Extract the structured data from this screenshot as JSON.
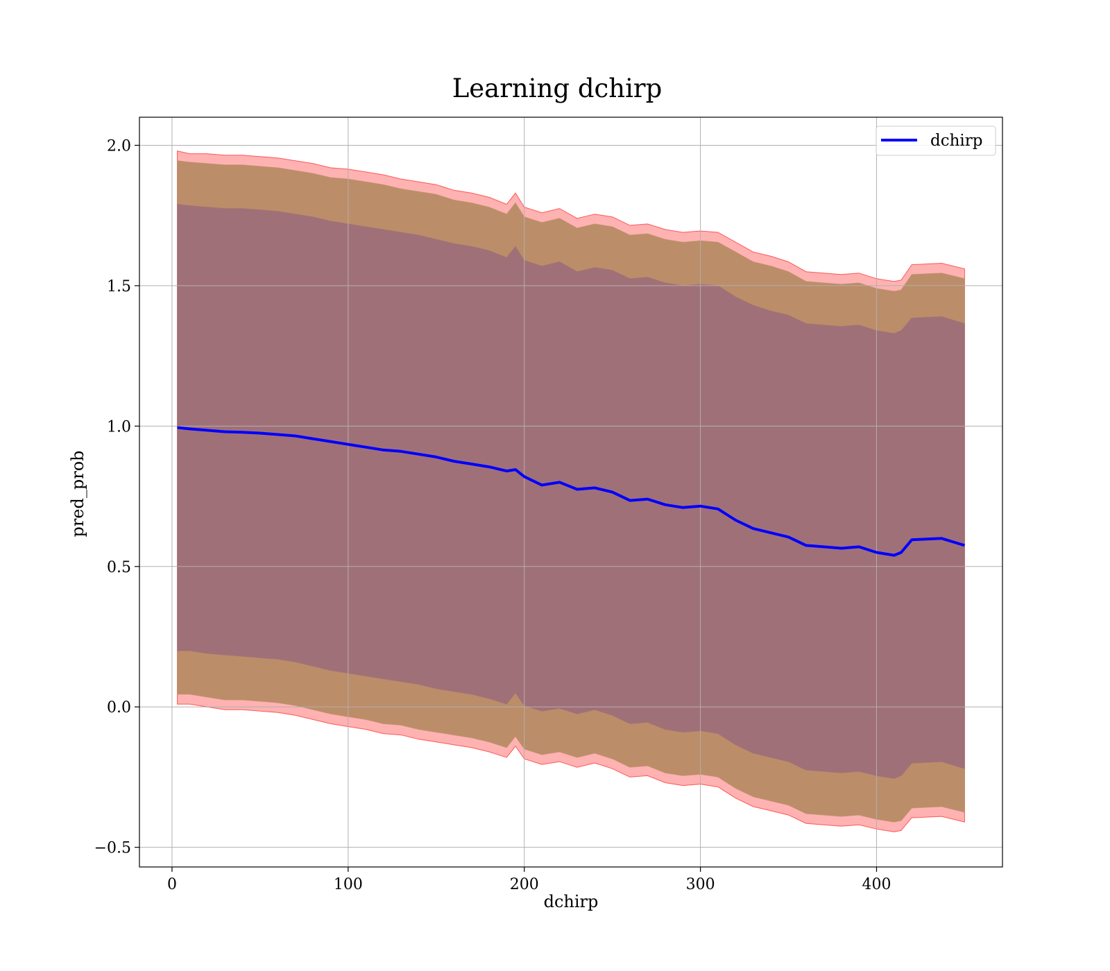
{
  "chart_data": {
    "type": "line",
    "title": "Learning dchirp",
    "xlabel": "dchirp",
    "ylabel": "pred_prob",
    "xlim": [
      -18.5,
      471.5
    ],
    "ylim": [
      -0.57,
      2.1
    ],
    "xticks": [
      0,
      100,
      200,
      300,
      400
    ],
    "xtick_labels": [
      "0",
      "100",
      "200",
      "300",
      "400"
    ],
    "yticks": [
      -0.5,
      0.0,
      0.5,
      1.0,
      1.5,
      2.0
    ],
    "ytick_labels": [
      "−0.5",
      "0.0",
      "0.5",
      "1.0",
      "1.5",
      "2.0"
    ],
    "grid": true,
    "legend": {
      "position": "top-right",
      "entries": [
        "dchirp"
      ]
    },
    "series": [
      {
        "name": "dchirp",
        "color": "#0000ff",
        "x": [
          3,
          10,
          20,
          30,
          40,
          50,
          60,
          70,
          80,
          90,
          100,
          110,
          120,
          130,
          140,
          150,
          160,
          170,
          180,
          190,
          195,
          200,
          210,
          220,
          230,
          240,
          250,
          260,
          270,
          280,
          290,
          300,
          310,
          320,
          330,
          340,
          350,
          360,
          370,
          380,
          390,
          400,
          410,
          414,
          420,
          437,
          450
        ],
        "values": [
          0.995,
          0.99,
          0.985,
          0.98,
          0.978,
          0.975,
          0.97,
          0.965,
          0.955,
          0.945,
          0.935,
          0.925,
          0.915,
          0.91,
          0.9,
          0.89,
          0.875,
          0.865,
          0.855,
          0.84,
          0.845,
          0.82,
          0.79,
          0.8,
          0.775,
          0.78,
          0.765,
          0.735,
          0.74,
          0.72,
          0.71,
          0.715,
          0.705,
          0.665,
          0.635,
          0.62,
          0.605,
          0.575,
          0.57,
          0.565,
          0.57,
          0.55,
          0.54,
          0.55,
          0.595,
          0.6,
          0.575
        ]
      }
    ],
    "bands": [
      {
        "label": "outer",
        "color": "#ff0000",
        "opacity": 0.3,
        "x": [
          3,
          10,
          20,
          30,
          40,
          50,
          60,
          70,
          80,
          90,
          100,
          110,
          120,
          130,
          140,
          150,
          160,
          170,
          180,
          190,
          195,
          200,
          210,
          220,
          230,
          240,
          250,
          260,
          270,
          280,
          290,
          300,
          310,
          320,
          330,
          340,
          350,
          360,
          370,
          380,
          390,
          400,
          410,
          414,
          420,
          437,
          450
        ],
        "upper": [
          1.98,
          1.97,
          1.97,
          1.965,
          1.965,
          1.96,
          1.955,
          1.945,
          1.935,
          1.92,
          1.915,
          1.905,
          1.895,
          1.88,
          1.87,
          1.86,
          1.84,
          1.83,
          1.815,
          1.79,
          1.83,
          1.78,
          1.76,
          1.775,
          1.74,
          1.755,
          1.745,
          1.715,
          1.72,
          1.7,
          1.69,
          1.695,
          1.69,
          1.655,
          1.62,
          1.605,
          1.585,
          1.55,
          1.545,
          1.54,
          1.545,
          1.525,
          1.515,
          1.52,
          1.575,
          1.58,
          1.56
        ],
        "lower": [
          0.01,
          0.01,
          0.0,
          -0.01,
          -0.01,
          -0.015,
          -0.02,
          -0.03,
          -0.045,
          -0.06,
          -0.07,
          -0.08,
          -0.095,
          -0.1,
          -0.115,
          -0.125,
          -0.135,
          -0.145,
          -0.16,
          -0.18,
          -0.14,
          -0.185,
          -0.205,
          -0.195,
          -0.215,
          -0.2,
          -0.22,
          -0.25,
          -0.245,
          -0.27,
          -0.28,
          -0.275,
          -0.285,
          -0.325,
          -0.355,
          -0.37,
          -0.385,
          -0.415,
          -0.42,
          -0.425,
          -0.42,
          -0.435,
          -0.445,
          -0.44,
          -0.395,
          -0.39,
          -0.41
        ]
      },
      {
        "label": "middle",
        "color": "#bc8d69",
        "opacity": 1,
        "x": [
          3,
          10,
          20,
          30,
          40,
          50,
          60,
          70,
          80,
          90,
          100,
          110,
          120,
          130,
          140,
          150,
          160,
          170,
          180,
          190,
          195,
          200,
          210,
          220,
          230,
          240,
          250,
          260,
          270,
          280,
          290,
          300,
          310,
          320,
          330,
          340,
          350,
          360,
          370,
          380,
          390,
          400,
          410,
          414,
          420,
          437,
          450
        ],
        "upper": [
          1.945,
          1.94,
          1.935,
          1.93,
          1.93,
          1.925,
          1.92,
          1.91,
          1.9,
          1.885,
          1.88,
          1.87,
          1.86,
          1.845,
          1.835,
          1.825,
          1.805,
          1.795,
          1.78,
          1.755,
          1.795,
          1.745,
          1.725,
          1.74,
          1.705,
          1.72,
          1.71,
          1.68,
          1.685,
          1.665,
          1.655,
          1.66,
          1.655,
          1.62,
          1.585,
          1.57,
          1.55,
          1.515,
          1.51,
          1.505,
          1.51,
          1.49,
          1.48,
          1.485,
          1.54,
          1.545,
          1.525
        ],
        "lower": [
          0.045,
          0.045,
          0.035,
          0.025,
          0.025,
          0.02,
          0.015,
          0.005,
          -0.01,
          -0.025,
          -0.035,
          -0.045,
          -0.06,
          -0.065,
          -0.08,
          -0.09,
          -0.1,
          -0.11,
          -0.125,
          -0.145,
          -0.105,
          -0.15,
          -0.17,
          -0.16,
          -0.18,
          -0.165,
          -0.185,
          -0.215,
          -0.21,
          -0.235,
          -0.245,
          -0.24,
          -0.25,
          -0.29,
          -0.32,
          -0.335,
          -0.35,
          -0.38,
          -0.385,
          -0.39,
          -0.385,
          -0.4,
          -0.41,
          -0.405,
          -0.36,
          -0.355,
          -0.375
        ]
      },
      {
        "label": "inner",
        "color": "#a07078",
        "opacity": 1,
        "x": [
          3,
          10,
          20,
          30,
          40,
          50,
          60,
          70,
          80,
          90,
          100,
          110,
          120,
          130,
          140,
          150,
          160,
          170,
          180,
          190,
          195,
          200,
          210,
          220,
          230,
          240,
          250,
          260,
          270,
          280,
          290,
          300,
          310,
          320,
          330,
          340,
          350,
          360,
          370,
          380,
          390,
          400,
          410,
          414,
          420,
          437,
          450
        ],
        "upper": [
          1.79,
          1.785,
          1.78,
          1.775,
          1.775,
          1.77,
          1.765,
          1.755,
          1.745,
          1.73,
          1.72,
          1.71,
          1.7,
          1.69,
          1.68,
          1.665,
          1.65,
          1.64,
          1.625,
          1.6,
          1.64,
          1.59,
          1.57,
          1.585,
          1.55,
          1.565,
          1.555,
          1.525,
          1.53,
          1.51,
          1.5,
          1.505,
          1.5,
          1.46,
          1.43,
          1.41,
          1.395,
          1.365,
          1.36,
          1.355,
          1.36,
          1.34,
          1.33,
          1.34,
          1.385,
          1.39,
          1.365
        ],
        "lower": [
          0.2,
          0.2,
          0.19,
          0.185,
          0.18,
          0.175,
          0.17,
          0.16,
          0.145,
          0.13,
          0.12,
          0.11,
          0.1,
          0.09,
          0.08,
          0.065,
          0.055,
          0.045,
          0.03,
          0.01,
          0.05,
          0.005,
          -0.015,
          -0.005,
          -0.025,
          -0.01,
          -0.03,
          -0.06,
          -0.055,
          -0.08,
          -0.09,
          -0.085,
          -0.095,
          -0.135,
          -0.165,
          -0.18,
          -0.195,
          -0.225,
          -0.23,
          -0.235,
          -0.23,
          -0.245,
          -0.255,
          -0.245,
          -0.2,
          -0.195,
          -0.22
        ]
      }
    ]
  }
}
